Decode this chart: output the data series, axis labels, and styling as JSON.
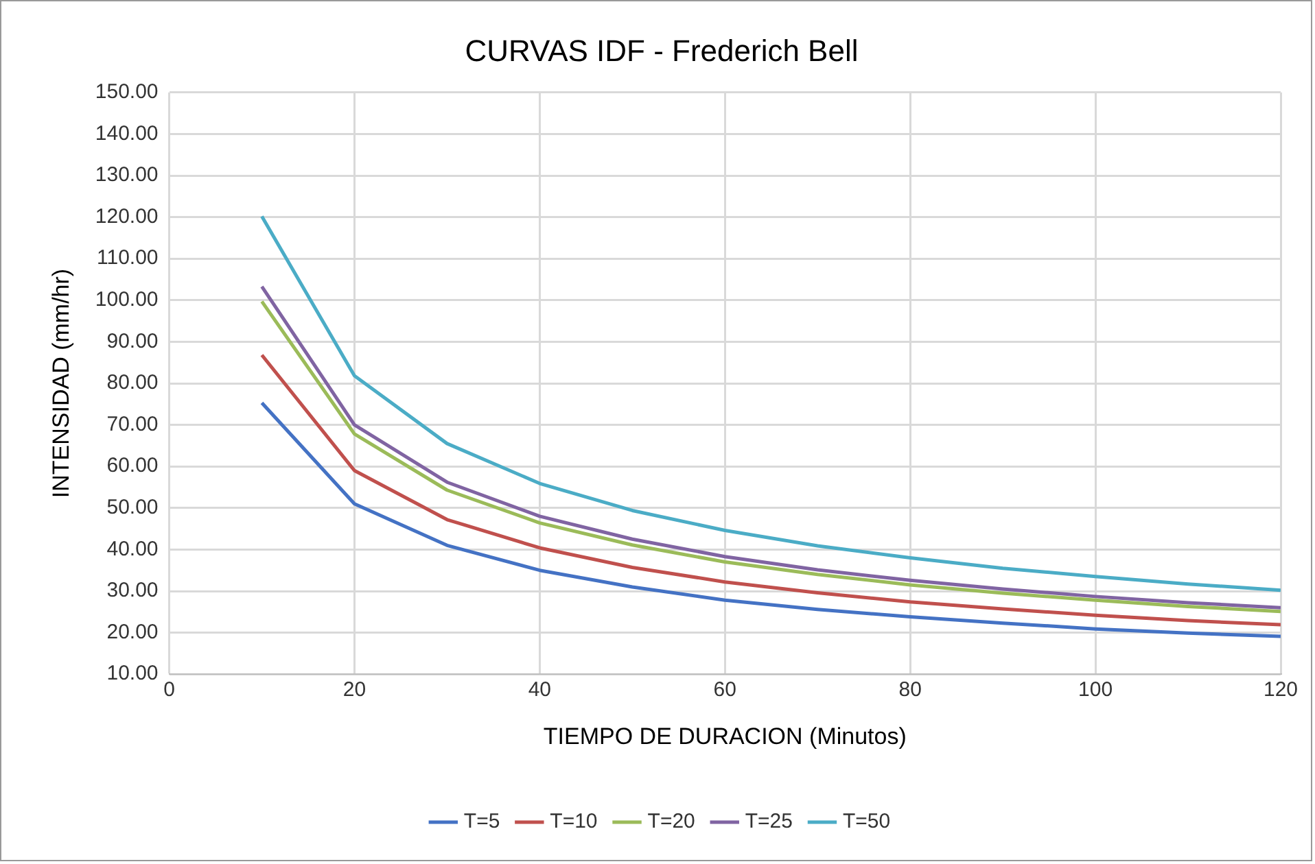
{
  "chart_data": {
    "type": "line",
    "title": "CURVAS IDF - Frederich Bell",
    "xlabel": "TIEMPO DE DURACION (Minutos)",
    "ylabel": "INTENSIDAD (mm/hr)",
    "x": [
      10,
      20,
      30,
      40,
      50,
      60,
      70,
      80,
      90,
      100,
      110,
      120
    ],
    "series": [
      {
        "name": "T=5",
        "color": "#4472c4",
        "values": [
          75.3,
          51,
          41,
          35,
          31,
          27.8,
          25.6,
          23.8,
          22.3,
          20.9,
          19.9,
          19.1
        ]
      },
      {
        "name": "T=10",
        "color": "#c0504d",
        "values": [
          86.8,
          59,
          47.2,
          40.4,
          35.7,
          32.2,
          29.6,
          27.4,
          25.7,
          24.2,
          22.9,
          21.9
        ]
      },
      {
        "name": "T=20",
        "color": "#9bbb59",
        "values": [
          99.7,
          67.8,
          54.3,
          46.4,
          41.1,
          37.0,
          34.0,
          31.5,
          29.5,
          27.8,
          26.3,
          25.1
        ]
      },
      {
        "name": "T=25",
        "color": "#8064a2",
        "values": [
          103.3,
          70,
          56.2,
          48,
          42.5,
          38.3,
          35.1,
          32.6,
          30.5,
          28.7,
          27.2,
          26
        ]
      },
      {
        "name": "T=50",
        "color": "#4bacc6",
        "values": [
          120.2,
          81.8,
          65.5,
          55.9,
          49.4,
          44.6,
          40.9,
          38,
          35.5,
          33.5,
          31.7,
          30.2
        ]
      }
    ],
    "xlim": [
      0,
      120
    ],
    "xticks": [
      0,
      20,
      40,
      60,
      80,
      100,
      120
    ],
    "ylim": [
      10,
      150
    ],
    "yticks": [
      {
        "value": 10,
        "label": "10.00"
      },
      {
        "value": 20,
        "label": "20.00"
      },
      {
        "value": 30,
        "label": "30.00"
      },
      {
        "value": 40,
        "label": "40.00"
      },
      {
        "value": 50,
        "label": "50.00"
      },
      {
        "value": 60,
        "label": "60.00"
      },
      {
        "value": 70,
        "label": "70.00"
      },
      {
        "value": 80,
        "label": "80.00"
      },
      {
        "value": 90,
        "label": "90.00"
      },
      {
        "value": 100,
        "label": "100.00"
      },
      {
        "value": 110,
        "label": "110.00"
      },
      {
        "value": 120,
        "label": "120.00"
      },
      {
        "value": 130,
        "label": "130.00"
      },
      {
        "value": 140,
        "label": "140.00"
      },
      {
        "value": 150,
        "label": "150.00"
      }
    ],
    "grid": true,
    "legend": "bottom",
    "marker": "none",
    "line_style": "solid"
  }
}
